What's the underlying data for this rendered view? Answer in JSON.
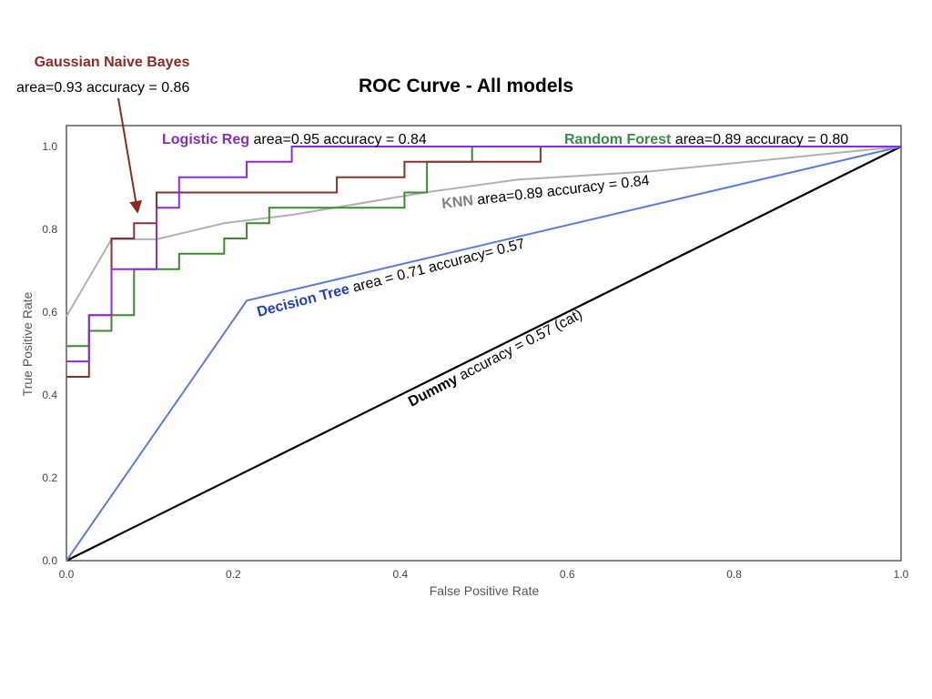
{
  "chart_data": {
    "type": "line",
    "title": "ROC Curve - All models",
    "xlabel": "False Positive Rate",
    "ylabel": "True Positive Rate",
    "xlim": [
      0,
      1
    ],
    "ylim": [
      0,
      1
    ],
    "x_ticks": [
      "0.0",
      "0.2",
      "0.4",
      "0.6",
      "0.8",
      "1.0"
    ],
    "y_ticks": [
      "0.0",
      "0.2",
      "0.4",
      "0.6",
      "0.8",
      "1.0"
    ],
    "grid": false,
    "series": [
      {
        "id": "dummy",
        "name": "Dummy",
        "detail": " accuracy = 0.57 (cat)",
        "color": "#000000",
        "name_color": "#000000",
        "points": [
          [
            0,
            0
          ],
          [
            1,
            1
          ]
        ]
      },
      {
        "id": "decision-tree",
        "name": "Decision Tree",
        "detail": " area = 0.71 accuracy= 0.57",
        "color": "#5b7be0",
        "name_color": "#1f3fc0",
        "points": [
          [
            0,
            0
          ],
          [
            0.216,
            0.628
          ],
          [
            1,
            1
          ]
        ]
      },
      {
        "id": "knn",
        "name": "KNN",
        "detail": " area=0.89 accuracy = 0.84",
        "color": "#b0b0b0",
        "name_color": "#808080",
        "points": [
          [
            0,
            0.59
          ],
          [
            0.054,
            0.776
          ],
          [
            0.108,
            0.776
          ],
          [
            0.189,
            0.815
          ],
          [
            0.27,
            0.835
          ],
          [
            0.432,
            0.89
          ],
          [
            0.54,
            0.92
          ],
          [
            0.7,
            0.94
          ],
          [
            0.85,
            0.97
          ],
          [
            1,
            1
          ]
        ]
      },
      {
        "id": "random-forest",
        "name": "Random Forest",
        "detail": " area=0.89 accuracy = 0.80",
        "color": "#3a8a2e",
        "name_color": "#3a8a4a",
        "points": [
          [
            0,
            0.518
          ],
          [
            0.027,
            0.518
          ],
          [
            0.027,
            0.555
          ],
          [
            0.054,
            0.555
          ],
          [
            0.054,
            0.593
          ],
          [
            0.081,
            0.593
          ],
          [
            0.081,
            0.704
          ],
          [
            0.135,
            0.704
          ],
          [
            0.135,
            0.741
          ],
          [
            0.189,
            0.741
          ],
          [
            0.189,
            0.778
          ],
          [
            0.216,
            0.778
          ],
          [
            0.216,
            0.815
          ],
          [
            0.243,
            0.815
          ],
          [
            0.243,
            0.852
          ],
          [
            0.405,
            0.852
          ],
          [
            0.405,
            0.889
          ],
          [
            0.432,
            0.889
          ],
          [
            0.432,
            0.963
          ],
          [
            0.486,
            0.963
          ],
          [
            0.486,
            1.0
          ],
          [
            1,
            1
          ]
        ]
      },
      {
        "id": "gaussian-nb",
        "name": "Gaussian Naive Bayes",
        "detail": "area=0.93 accuracy = 0.86",
        "color": "#8b3030",
        "name_color": "#8b2a1e",
        "points": [
          [
            0,
            0.444
          ],
          [
            0.027,
            0.444
          ],
          [
            0.027,
            0.593
          ],
          [
            0.054,
            0.593
          ],
          [
            0.054,
            0.778
          ],
          [
            0.081,
            0.778
          ],
          [
            0.081,
            0.815
          ],
          [
            0.108,
            0.815
          ],
          [
            0.108,
            0.889
          ],
          [
            0.324,
            0.889
          ],
          [
            0.324,
            0.926
          ],
          [
            0.405,
            0.926
          ],
          [
            0.405,
            0.963
          ],
          [
            0.568,
            0.963
          ],
          [
            0.568,
            1.0
          ],
          [
            1,
            1
          ]
        ]
      },
      {
        "id": "logistic-reg",
        "name": "Logistic Reg",
        "detail": " area=0.95 accuracy = 0.84",
        "color": "#8a2be2",
        "name_color": "#8a2cb8",
        "points": [
          [
            0,
            0.481
          ],
          [
            0.027,
            0.481
          ],
          [
            0.027,
            0.593
          ],
          [
            0.054,
            0.593
          ],
          [
            0.054,
            0.704
          ],
          [
            0.108,
            0.704
          ],
          [
            0.108,
            0.852
          ],
          [
            0.135,
            0.852
          ],
          [
            0.135,
            0.926
          ],
          [
            0.216,
            0.926
          ],
          [
            0.216,
            0.963
          ],
          [
            0.27,
            0.963
          ],
          [
            0.27,
            1.0
          ],
          [
            1,
            1
          ]
        ]
      }
    ]
  }
}
